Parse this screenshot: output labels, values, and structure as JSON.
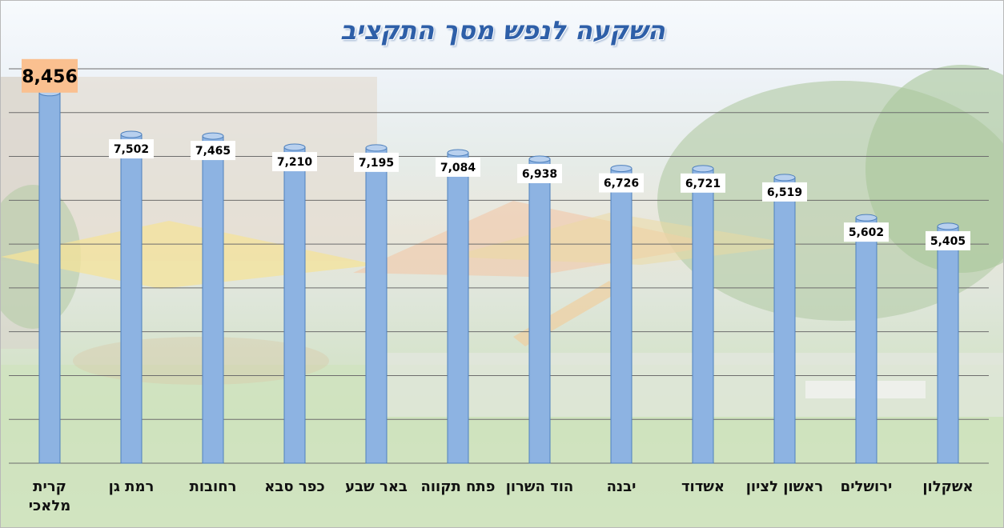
{
  "chart_data": {
    "type": "bar",
    "title": "השקעה לנפש מסך התקציב",
    "categories": [
      "קרית מלאכי",
      "רמת גן",
      "רחובות",
      "כפר סבא",
      "באר שבע",
      "פתח תקווה",
      "הוד השרון",
      "יבנה",
      "אשדוד",
      "ראשון לציון",
      "ירושלים",
      "אשקלון"
    ],
    "values": [
      8456,
      7502,
      7465,
      7210,
      7195,
      7084,
      6938,
      6726,
      6721,
      6519,
      5602,
      5405
    ],
    "value_labels": [
      "8,456",
      "7,502",
      "7,465",
      "7,210",
      "7,195",
      "7,084",
      "6,938",
      "6,726",
      "6,721",
      "6,519",
      "5,602",
      "5,405"
    ],
    "ylim": [
      0,
      9000
    ],
    "grid": true,
    "highlight_index": 0,
    "colors": {
      "bar": "#8db3e2",
      "bar_edge": "#4f81bd",
      "highlight_label_bg": "#fac090",
      "title": "#2e5fa8"
    }
  }
}
